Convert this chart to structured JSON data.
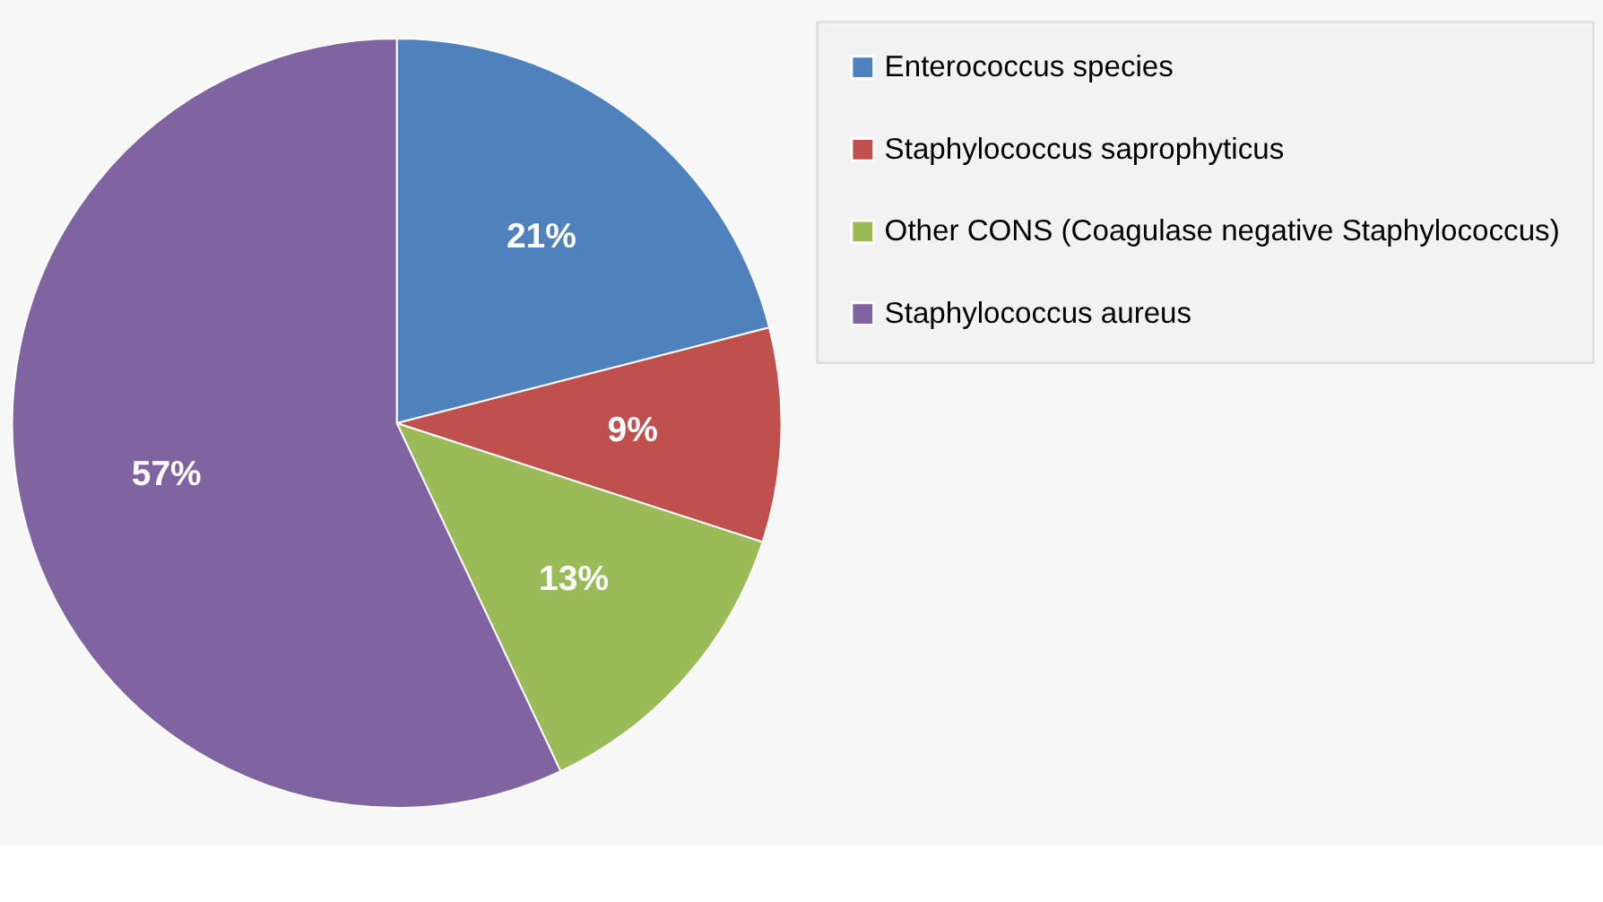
{
  "chart_data": {
    "type": "pie",
    "categories": [
      "Enterococcus species",
      "Staphylococcus saprophyticus",
      "Other CONS (Coagulase negative Staphylococcus)",
      "Staphylococcus aureus"
    ],
    "values": [
      21,
      9,
      13,
      57
    ],
    "colors": [
      "#4f81bd",
      "#c0504d",
      "#9bbb59",
      "#8064a2"
    ],
    "value_labels": [
      "21%",
      "9%",
      "13%",
      "57%"
    ],
    "legend": "right"
  }
}
